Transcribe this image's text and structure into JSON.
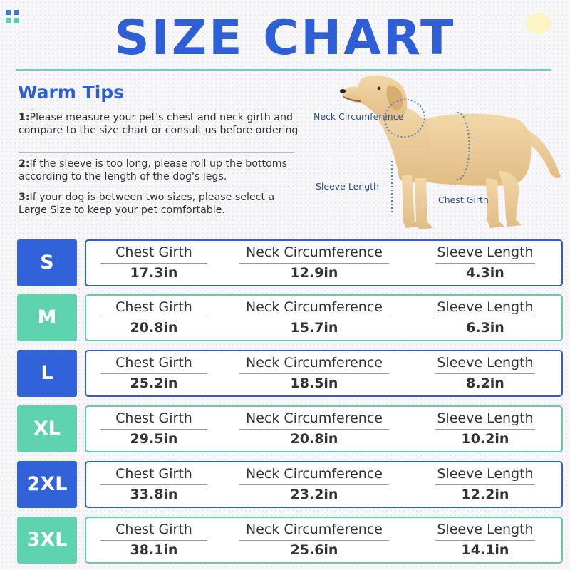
{
  "title": "SIZE CHART",
  "colors": {
    "title": "#2f5fd6",
    "badge_blue": "#3162d8",
    "badge_green": "#5ed3ad",
    "card_border_blue": "#2f5fc6",
    "card_border_green": "#5ecfa8",
    "rule_teal": "#6fcfba",
    "deco_square_blue": "#3b79d8",
    "deco_square_green": "#57d0b2",
    "label_blue": "#2f4f8c",
    "measure_dots": "#5b7fbf"
  },
  "warm_tips": {
    "heading": "Warm Tips",
    "items": [
      {
        "num": "1:",
        "text": "Please measure your pet's chest and neck girth and compare to the size chart or consult us before ordering"
      },
      {
        "num": "2:",
        "text": "If the sleeve is too long, please roll up the bottoms according to the length of the dog's legs."
      },
      {
        "num": "3:",
        "text": "If your dog is between two sizes,  please select a Large Size to keep your pet comfortable."
      }
    ]
  },
  "dog_diagram": {
    "labels": {
      "neck": "Neck Circumference",
      "sleeve": "Sleeve Length",
      "chest": "Chest Girth"
    }
  },
  "table": {
    "column_headers": [
      "Chest Girth",
      "Neck Circumference",
      "Sleeve Length"
    ],
    "rows": [
      {
        "size": "S",
        "theme": "blue",
        "values": [
          "17.3in",
          "12.9in",
          "4.3in"
        ]
      },
      {
        "size": "M",
        "theme": "green",
        "values": [
          "20.8in",
          "15.7in",
          "6.3in"
        ]
      },
      {
        "size": "L",
        "theme": "blue",
        "values": [
          "25.2in",
          "18.5in",
          "8.2in"
        ]
      },
      {
        "size": "XL",
        "theme": "green",
        "values": [
          "29.5in",
          "20.8in",
          "10.2in"
        ]
      },
      {
        "size": "2XL",
        "theme": "blue",
        "values": [
          "33.8in",
          "23.2in",
          "12.2in"
        ]
      },
      {
        "size": "3XL",
        "theme": "green",
        "values": [
          "38.1in",
          "25.6in",
          "14.1in"
        ]
      }
    ]
  }
}
